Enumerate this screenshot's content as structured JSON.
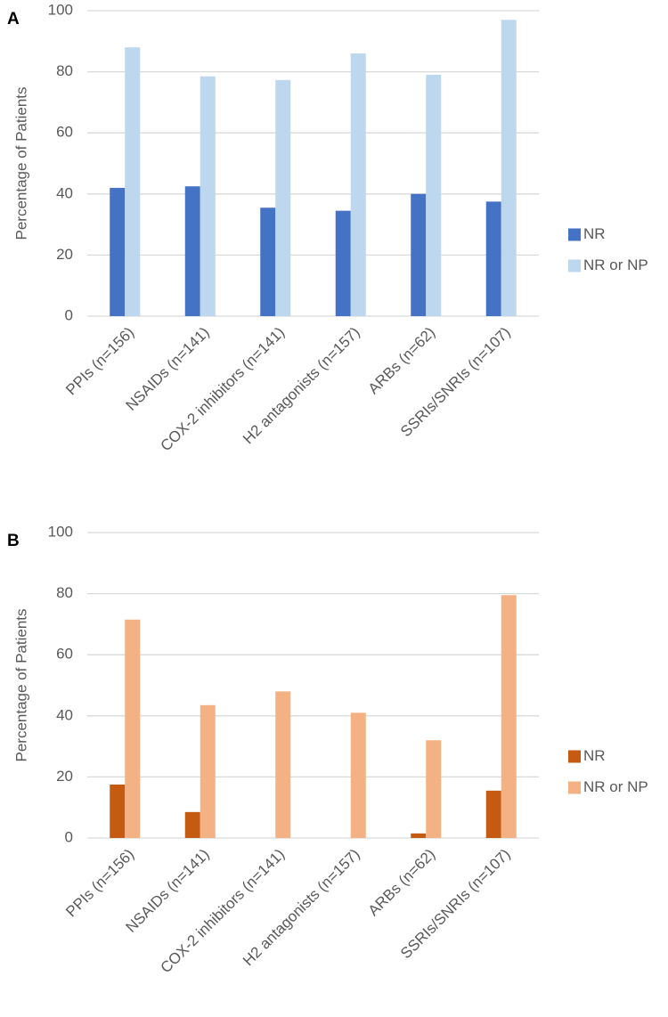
{
  "chart_data": [
    {
      "type": "bar",
      "label": "A",
      "y_label": "Percentage of Patients",
      "categories": [
        "PPIs (n=156)",
        "NSAIDs (n=141)",
        "COX-2 inhibitors (n=141)",
        "H2 antagonists (n=157)",
        "ARBs (n=62)",
        "SSRIs/SNRIs (n=107)"
      ],
      "series": [
        {
          "name": "NR",
          "color": "#4472c4",
          "values": [
            42,
            42.5,
            35.5,
            34.5,
            40,
            37.5
          ]
        },
        {
          "name": "NR or NP",
          "color": "#bdd7ee",
          "values": [
            88,
            78.5,
            77.3,
            86,
            79,
            97
          ]
        }
      ],
      "ylim": [
        0,
        100
      ],
      "yticks": [
        0,
        20,
        40,
        60,
        80,
        100
      ],
      "grid": true,
      "legend": "right"
    },
    {
      "type": "bar",
      "label": "B",
      "y_label": "Percentage of Patients",
      "categories": [
        "PPIs (n=156)",
        "NSAIDs (n=141)",
        "COX-2 inhibitors (n=141)",
        "H2 antagonists (n=157)",
        "ARBs (n=62)",
        "SSRIs/SNRIs (n=107)"
      ],
      "series": [
        {
          "name": "NR",
          "color": "#c55a11",
          "values": [
            17.5,
            8.5,
            0,
            0,
            1.5,
            15.5
          ]
        },
        {
          "name": "NR or NP",
          "color": "#f4b183",
          "values": [
            71.5,
            43.5,
            48,
            41,
            32,
            79.5
          ]
        }
      ],
      "ylim": [
        0,
        100
      ],
      "yticks": [
        0,
        20,
        40,
        60,
        80,
        100
      ],
      "grid": true,
      "legend": "right"
    }
  ]
}
